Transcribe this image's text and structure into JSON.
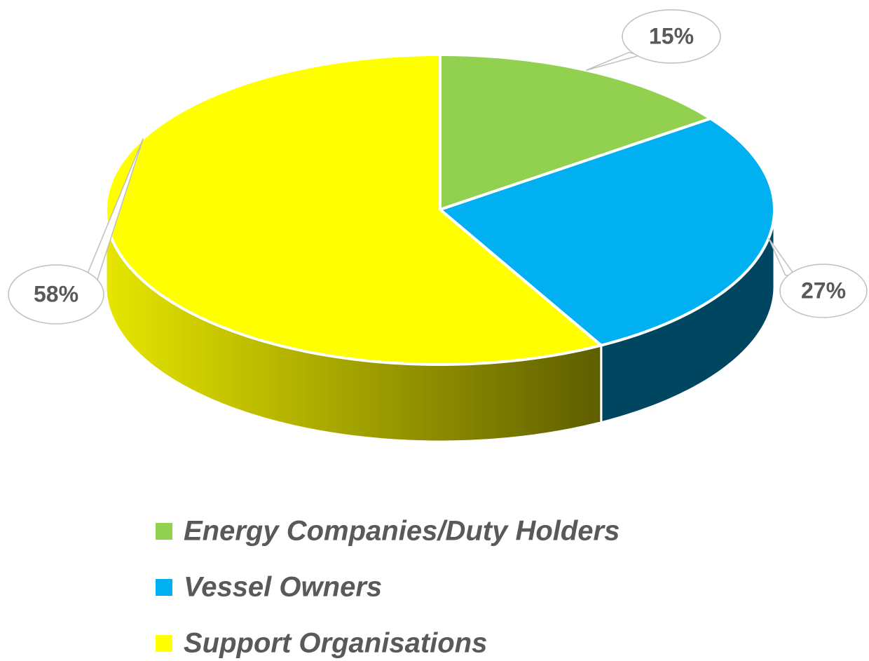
{
  "chart_data": {
    "type": "pie",
    "categories": [
      "Energy Companies/Duty Holders",
      "Vessel Owners",
      "Support Organisations"
    ],
    "values": [
      15,
      27,
      58
    ],
    "value_labels": [
      "15%",
      "27%",
      "58%"
    ],
    "colors": [
      "#92d050",
      "#00b0f0",
      "#ffff00"
    ],
    "legend": "bottom"
  }
}
